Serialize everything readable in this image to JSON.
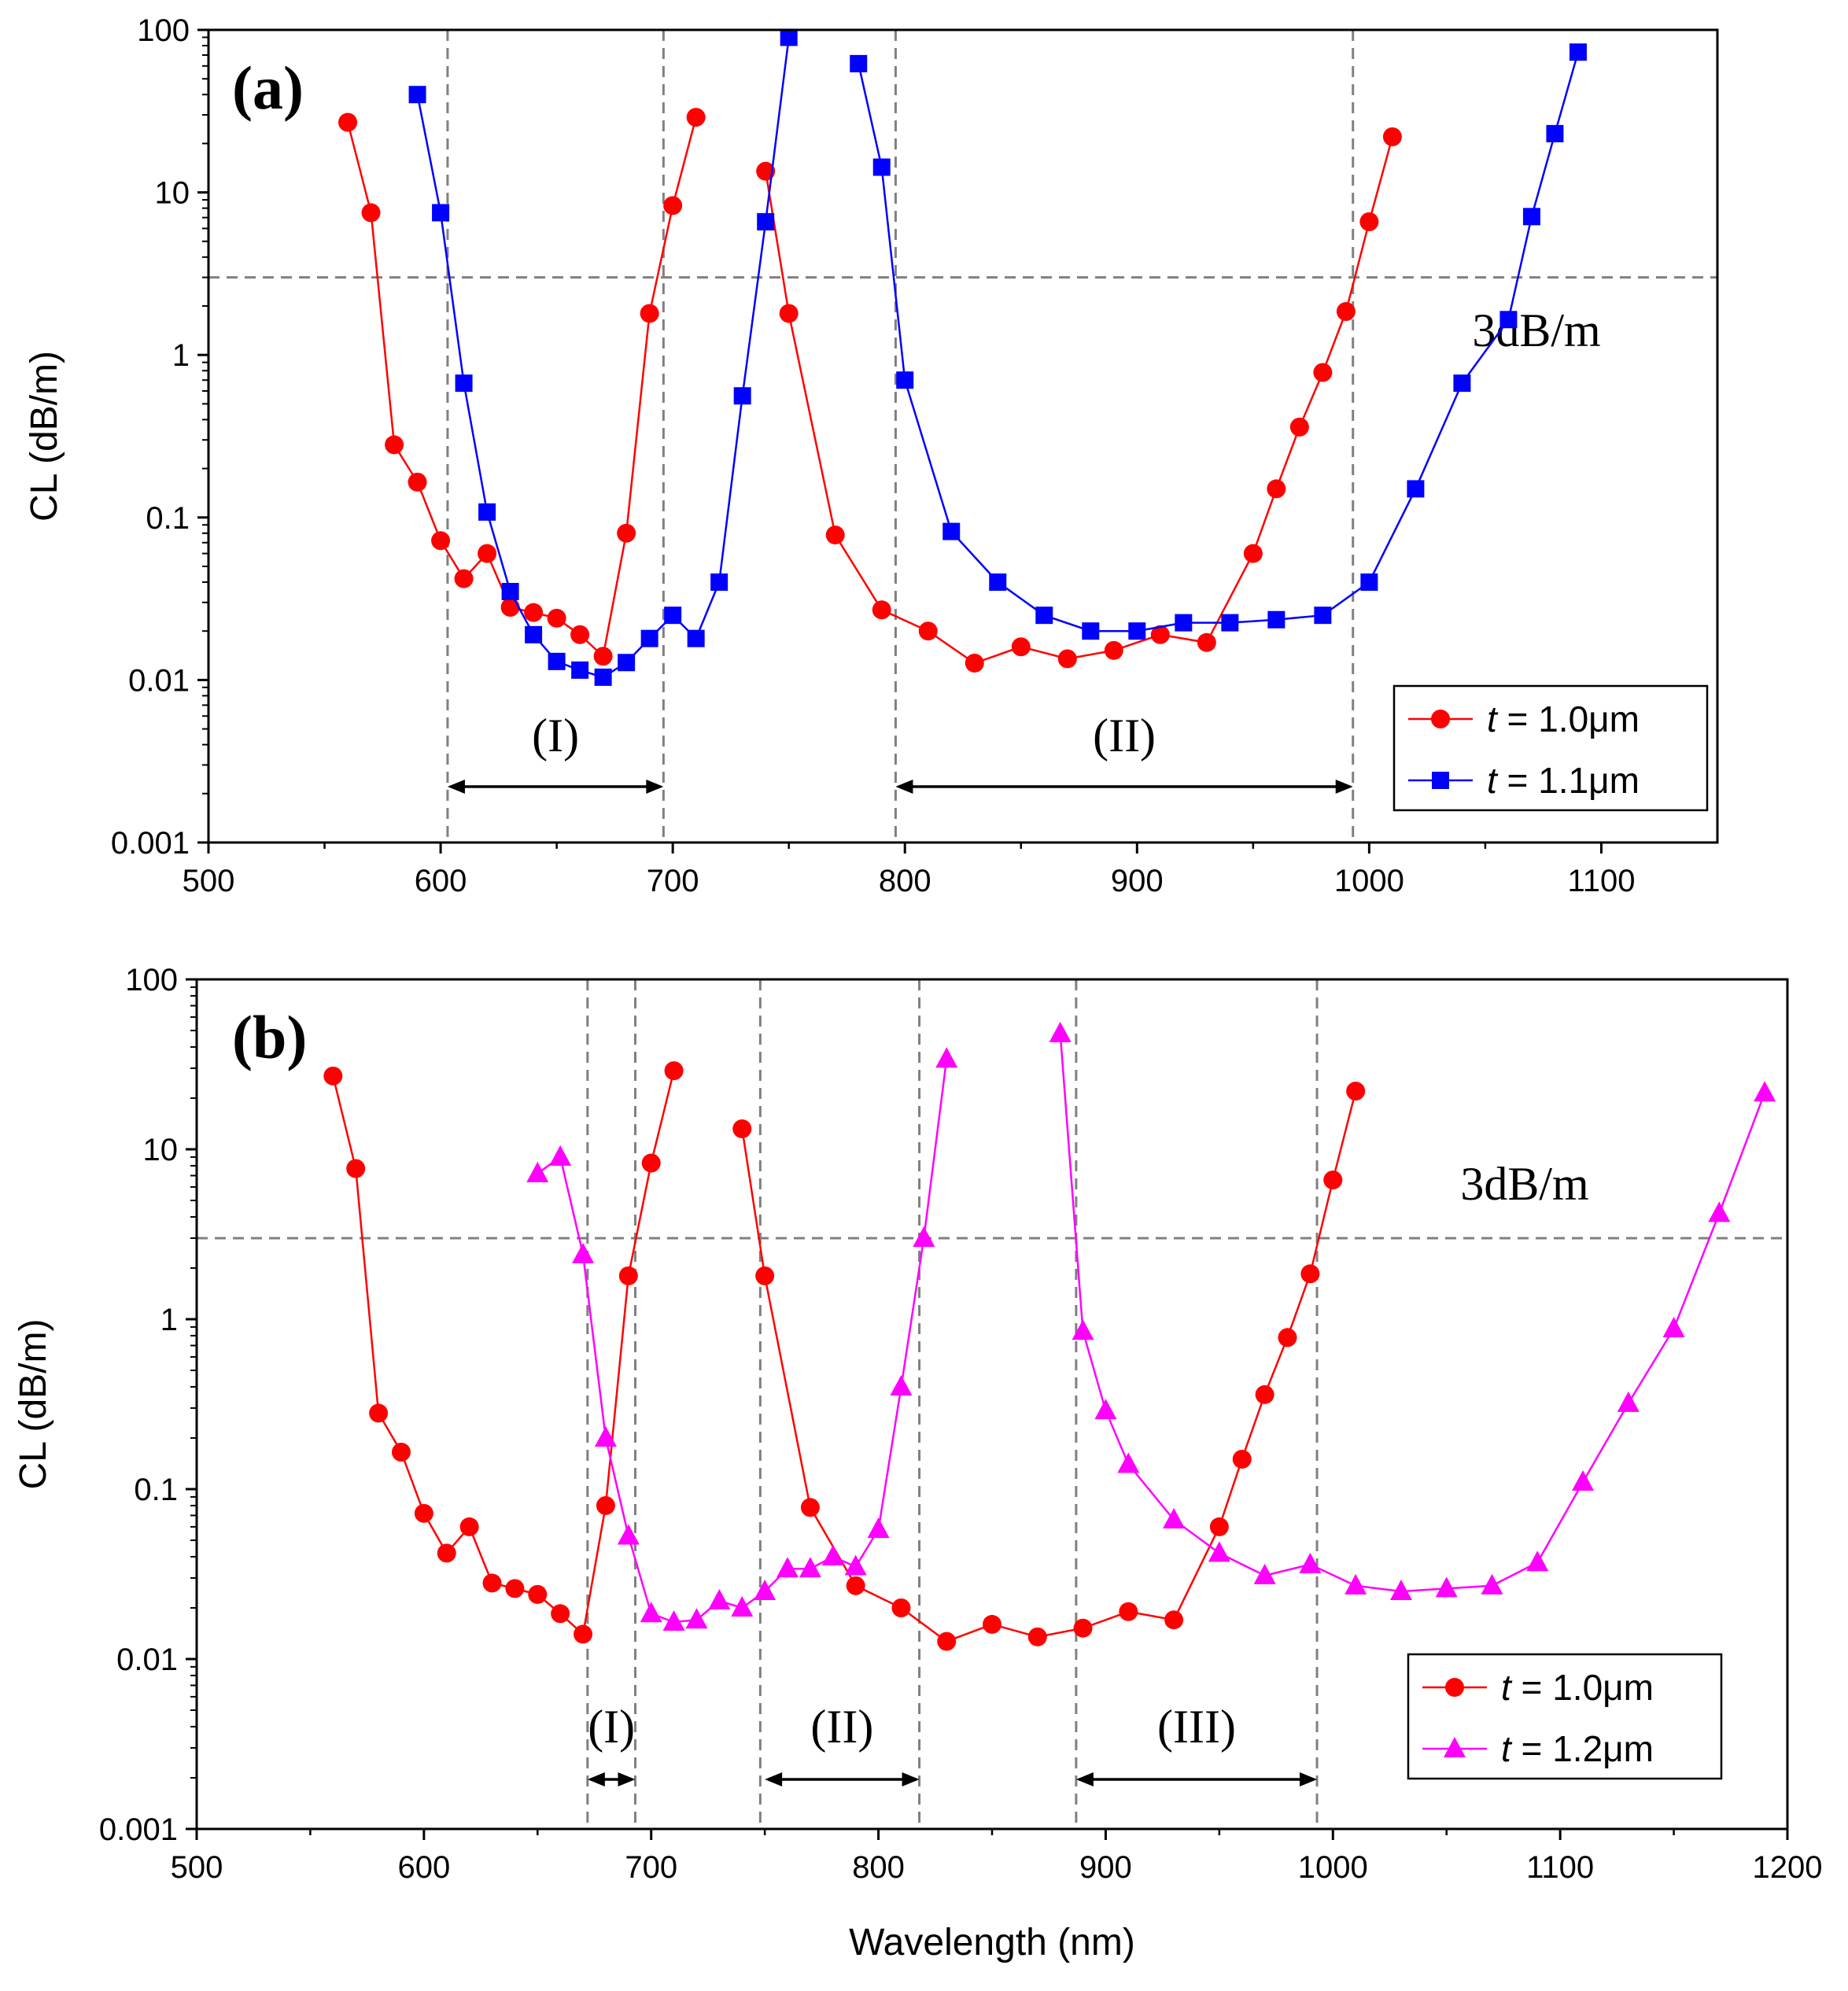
{
  "chart_data": [
    {
      "type": "line",
      "panel_label": "(a)",
      "ylabel": "CL (dB/m)",
      "xlabel": "",
      "xlim": [
        500,
        1150
      ],
      "ylim": [
        0.001,
        100
      ],
      "yscale": "log",
      "x_ticks": [
        500,
        600,
        700,
        800,
        900,
        1000,
        1100
      ],
      "x_tick_labels": [
        "500",
        "600",
        "700",
        "800",
        "900",
        "1000",
        "1100"
      ],
      "y_ticks": [
        0.001,
        0.01,
        0.1,
        1,
        10,
        100
      ],
      "y_tick_labels": [
        "0.001",
        "0.01",
        "0.1",
        "1",
        "10",
        "100"
      ],
      "reference_line": {
        "y": 3,
        "label": "3dB/m"
      },
      "vertical_lines": [
        603,
        696,
        796,
        993
      ],
      "regions": [
        {
          "label": "(I)",
          "from": 603,
          "to": 696
        },
        {
          "label": "(II)",
          "from": 796,
          "to": 993
        }
      ],
      "legend": {
        "position": "bottom-right"
      },
      "series": [
        {
          "name_var": "t",
          "name_rest": " = 1.0μm",
          "color": "#ff0000",
          "marker": "circle",
          "segments": [
            {
              "x": [
                560,
                570,
                580,
                590,
                600,
                610,
                620,
                630,
                640,
                650,
                660,
                670,
                680,
                690,
                700,
                710
              ],
              "y": [
                27,
                7.5,
                0.28,
                0.165,
                0.072,
                0.042,
                0.06,
                0.028,
                0.026,
                0.024,
                0.019,
                0.014,
                0.08,
                1.8,
                8.3,
                29
              ]
            },
            {
              "x": [
                740,
                750,
                770,
                790,
                810,
                830,
                850,
                870,
                890,
                910,
                930,
                950,
                960,
                970,
                980,
                990,
                1000,
                1010
              ],
              "y": [
                13.5,
                1.8,
                0.078,
                0.027,
                0.02,
                0.0127,
                0.016,
                0.0135,
                0.0152,
                0.019,
                0.017,
                0.06,
                0.15,
                0.36,
                0.78,
                1.85,
                6.6,
                22
              ]
            }
          ]
        },
        {
          "name_var": "t",
          "name_rest": " = 1.1μm",
          "color": "#0000ff",
          "marker": "square",
          "segments": [
            {
              "x": [
                590,
                600,
                610,
                620,
                630,
                640,
                650,
                660,
                670,
                680,
                690,
                700,
                710,
                720,
                730,
                740,
                750
              ],
              "y": [
                40,
                7.5,
                0.67,
                0.108,
                0.035,
                0.019,
                0.013,
                0.0115,
                0.0104,
                0.0128,
                0.018,
                0.025,
                0.018,
                0.04,
                0.56,
                6.6,
                90
              ]
            },
            {
              "x": [
                780,
                790,
                800,
                820,
                840,
                860,
                880,
                900,
                920,
                940,
                960,
                980,
                1000,
                1020,
                1040,
                1060,
                1070,
                1080,
                1090
              ],
              "y": [
                62,
                14.3,
                0.7,
                0.082,
                0.04,
                0.025,
                0.02,
                0.02,
                0.0225,
                0.0225,
                0.0235,
                0.025,
                0.04,
                0.15,
                0.67,
                1.65,
                7.1,
                23,
                73
              ]
            }
          ]
        }
      ]
    },
    {
      "type": "line",
      "panel_label": "(b)",
      "ylabel": "CL (dB/m)",
      "xlabel": "Wavelength (nm)",
      "xlim": [
        500,
        1200
      ],
      "ylim": [
        0.001,
        100
      ],
      "yscale": "log",
      "x_ticks": [
        500,
        600,
        700,
        800,
        900,
        1000,
        1100,
        1200
      ],
      "x_tick_labels": [
        "500",
        "600",
        "700",
        "800",
        "900",
        "1000",
        "1100",
        "1200"
      ],
      "y_ticks": [
        0.001,
        0.01,
        0.1,
        1,
        10,
        100
      ],
      "y_tick_labels": [
        "0.001",
        "0.01",
        "0.1",
        "1",
        "10",
        "100"
      ],
      "reference_line": {
        "y": 3,
        "label": "3dB/m"
      },
      "vertical_lines": [
        672,
        693,
        748,
        818,
        887,
        993
      ],
      "regions": [
        {
          "label": "(I)",
          "from": 672,
          "to": 693
        },
        {
          "label": "(II)",
          "from": 750,
          "to": 818
        },
        {
          "label": "(III)",
          "from": 887,
          "to": 993
        }
      ],
      "legend": {
        "position": "bottom-right"
      },
      "series": [
        {
          "name_var": "t",
          "name_rest": " = 1.0μm",
          "color": "#ff0000",
          "marker": "circle",
          "segments": [
            {
              "x": [
                560,
                570,
                580,
                590,
                600,
                610,
                620,
                630,
                640,
                650,
                660,
                670,
                680,
                690,
                700,
                710
              ],
              "y": [
                27,
                7.7,
                0.28,
                0.165,
                0.072,
                0.042,
                0.06,
                0.028,
                0.026,
                0.024,
                0.0185,
                0.014,
                0.08,
                1.8,
                8.3,
                29
              ]
            },
            {
              "x": [
                740,
                750,
                770,
                790,
                810,
                830,
                850,
                870,
                890,
                910,
                930,
                950,
                960,
                970,
                980,
                990,
                1000,
                1010
              ],
              "y": [
                13.2,
                1.8,
                0.078,
                0.027,
                0.02,
                0.0127,
                0.016,
                0.0135,
                0.0152,
                0.019,
                0.017,
                0.06,
                0.15,
                0.36,
                0.78,
                1.85,
                6.6,
                22
              ]
            }
          ]
        },
        {
          "name_var": "t",
          "name_rest": " = 1.2μm",
          "color": "#ff00ff",
          "marker": "triangle",
          "segments": [
            {
              "x": [
                650,
                660,
                670,
                680,
                690,
                700,
                710,
                720,
                730,
                740,
                750,
                760,
                770,
                780,
                790,
                800,
                810,
                820,
                830
              ],
              "y": [
                7.2,
                9,
                2.4,
                0.2,
                0.053,
                0.0185,
                0.0165,
                0.017,
                0.022,
                0.02,
                0.025,
                0.034,
                0.034,
                0.04,
                0.035,
                0.058,
                0.4,
                3,
                34
              ]
            },
            {
              "x": [
                880,
                890,
                900,
                910,
                930,
                950,
                970,
                990,
                1010,
                1030,
                1050,
                1070,
                1090,
                1110,
                1130,
                1150,
                1170,
                1190
              ],
              "y": [
                48,
                0.85,
                0.29,
                0.14,
                0.066,
                0.042,
                0.031,
                0.036,
                0.027,
                0.025,
                0.026,
                0.027,
                0.037,
                0.11,
                0.32,
                0.88,
                4.2,
                21.5
              ]
            }
          ]
        }
      ]
    }
  ]
}
